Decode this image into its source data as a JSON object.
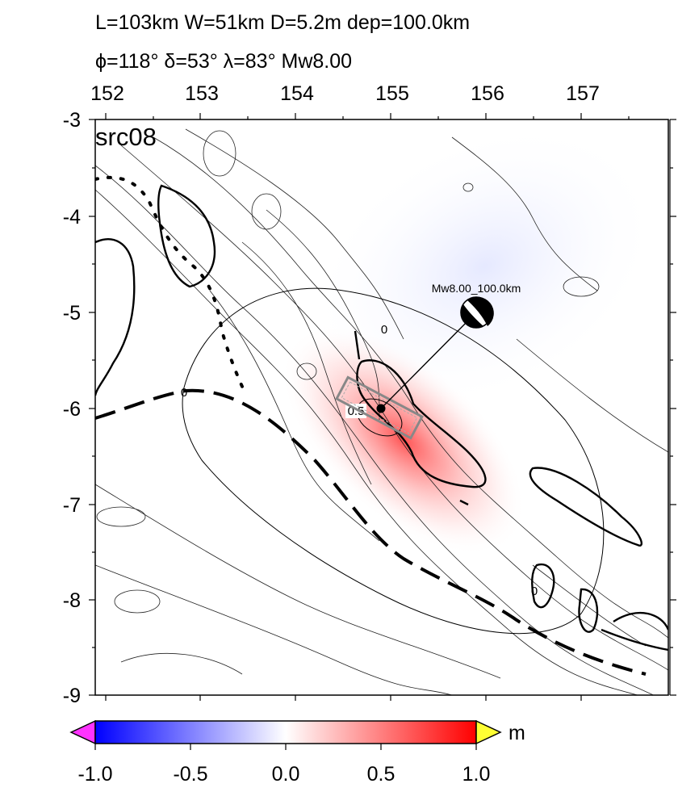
{
  "header": {
    "line1": "L=103km W=51km D=5.2m dep=100.0km",
    "line2": "ϕ=118° δ=53° λ=83° Mw8.00"
  },
  "map": {
    "panel_label": "src08",
    "lon_range": [
      152,
      157.9
    ],
    "lat_range": [
      -9,
      -3
    ],
    "lon_ticks": [
      "152",
      "153",
      "154",
      "155",
      "156",
      "157"
    ],
    "lat_ticks": [
      "-3",
      "-4",
      "-5",
      "-6",
      "-7",
      "-8",
      "-9"
    ],
    "epicenter": {
      "lon": 154.9,
      "lat": -6.0
    },
    "beachball": {
      "lon": 155.95,
      "lat": -5.0,
      "label": "Mw8.00_100.0km"
    },
    "fault_plane_box": {
      "center_lon": 154.9,
      "center_lat": -6.0,
      "strike_deg": 118
    },
    "contour_labels": [
      "0",
      "0",
      "0",
      "0.5"
    ],
    "colors": {
      "positive": "#ff0000",
      "negative": "#0000ff",
      "zero": "#ffffff",
      "overflow_high": "#ffff33",
      "overflow_low": "#ff33ff"
    }
  },
  "colorbar": {
    "unit": "m",
    "range": [
      -1.0,
      1.0
    ],
    "ticks": [
      "-1.0",
      "-0.5",
      "0.0",
      "0.5",
      "1.0"
    ]
  }
}
